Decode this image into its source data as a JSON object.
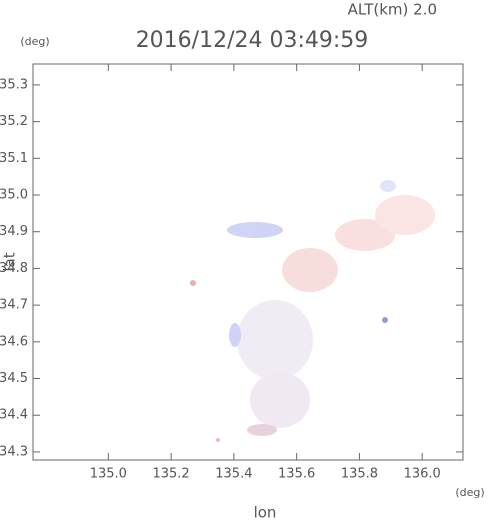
{
  "chart_data": {
    "type": "map",
    "title": "2016/12/24 03:49:59",
    "subtitle": "ALT(km) 2.0",
    "y_unit": "(deg)",
    "x_unit": "(deg)",
    "y_label": "lat",
    "x_label": "lon",
    "xlim": [
      134.76,
      136.13
    ],
    "ylim": [
      34.278,
      35.357
    ],
    "xticks": [
      {
        "value": 135,
        "label": "135.0"
      },
      135.2,
      135.4,
      135.6,
      135.8,
      {
        "value": 136,
        "label": "136.0"
      }
    ],
    "yticks": [
      34.3,
      34.4,
      34.5,
      34.6,
      34.7,
      34.8,
      34.9,
      {
        "value": 35,
        "label": "35.0"
      },
      35.1,
      35.2,
      35.3
    ]
  }
}
